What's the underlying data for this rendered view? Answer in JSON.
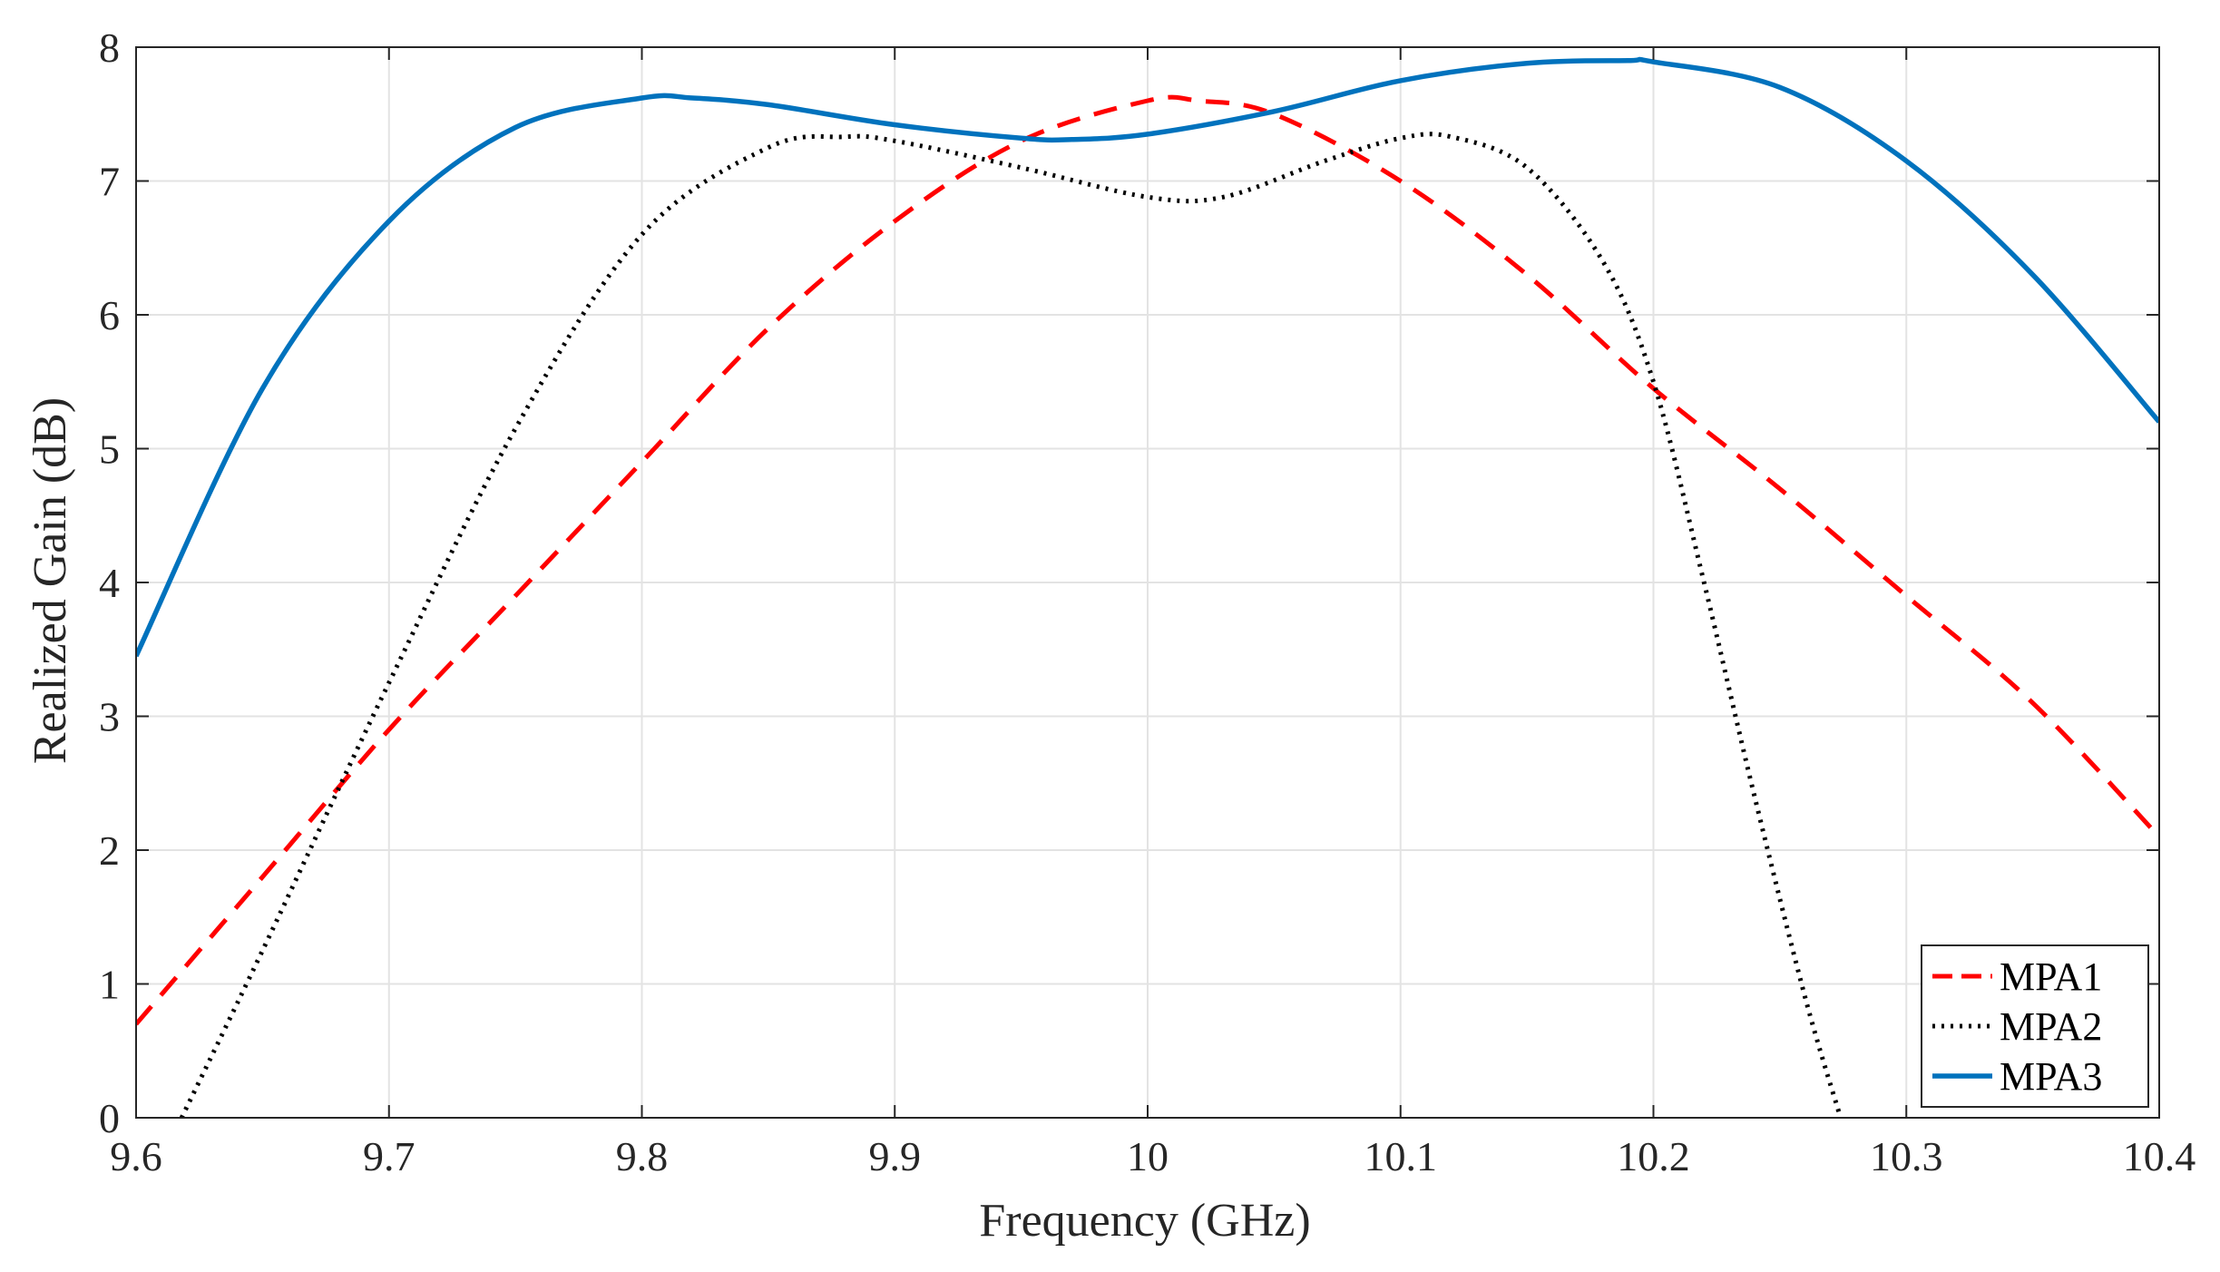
{
  "chart_data": {
    "type": "line",
    "title": "",
    "xlabel": "Frequency (GHz)",
    "ylabel": "Realized Gain (dB)",
    "xlim": [
      9.6,
      10.4
    ],
    "ylim": [
      0,
      8
    ],
    "xticks": [
      9.6,
      9.7,
      9.8,
      9.9,
      10,
      10.1,
      10.2,
      10.3,
      10.4
    ],
    "xtick_labels": [
      "9.6",
      "9.7",
      "9.8",
      "9.9",
      "10",
      "10.1",
      "10.2",
      "10.3",
      "10.4"
    ],
    "yticks": [
      0,
      1,
      2,
      3,
      4,
      5,
      6,
      7,
      8
    ],
    "ytick_labels": [
      "0",
      "1",
      "2",
      "3",
      "4",
      "5",
      "6",
      "7",
      "8"
    ],
    "grid": true,
    "legend_position": "bottom-right",
    "series": [
      {
        "name": "MPA1",
        "color": "#ff0000",
        "style": "dashed",
        "x": [
          9.6,
          9.65,
          9.7,
          9.75,
          9.8,
          9.85,
          9.9,
          9.95,
          10.0,
          10.02,
          10.05,
          10.1,
          10.15,
          10.2,
          10.25,
          10.3,
          10.35,
          10.4
        ],
        "y": [
          0.7,
          1.8,
          2.9,
          3.9,
          4.9,
          5.9,
          6.7,
          7.3,
          7.6,
          7.6,
          7.5,
          7.0,
          6.3,
          5.45,
          4.7,
          3.9,
          3.1,
          2.1
        ]
      },
      {
        "name": "MPA2",
        "color": "#000000",
        "style": "dotted",
        "x": [
          9.618,
          9.65,
          9.7,
          9.75,
          9.8,
          9.85,
          9.88,
          9.9,
          9.95,
          10.0,
          10.03,
          10.07,
          10.1,
          10.12,
          10.15,
          10.18,
          10.2,
          10.22,
          10.24,
          10.26,
          10.274
        ],
        "y": [
          0.0,
          1.25,
          3.25,
          5.15,
          6.6,
          7.25,
          7.33,
          7.3,
          7.1,
          6.88,
          6.88,
          7.15,
          7.32,
          7.33,
          7.1,
          6.4,
          5.5,
          4.0,
          2.4,
          0.9,
          0.0
        ]
      },
      {
        "name": "MPA3",
        "color": "#0072bd",
        "style": "solid",
        "x": [
          9.6,
          9.65,
          9.7,
          9.75,
          9.8,
          9.82,
          9.85,
          9.9,
          9.95,
          9.97,
          10.0,
          10.05,
          10.1,
          10.15,
          10.19,
          10.2,
          10.25,
          10.3,
          10.35,
          10.4
        ],
        "y": [
          3.45,
          5.45,
          6.7,
          7.4,
          7.62,
          7.62,
          7.57,
          7.42,
          7.32,
          7.31,
          7.35,
          7.52,
          7.75,
          7.88,
          7.9,
          7.89,
          7.7,
          7.15,
          6.3,
          5.2
        ]
      }
    ]
  }
}
